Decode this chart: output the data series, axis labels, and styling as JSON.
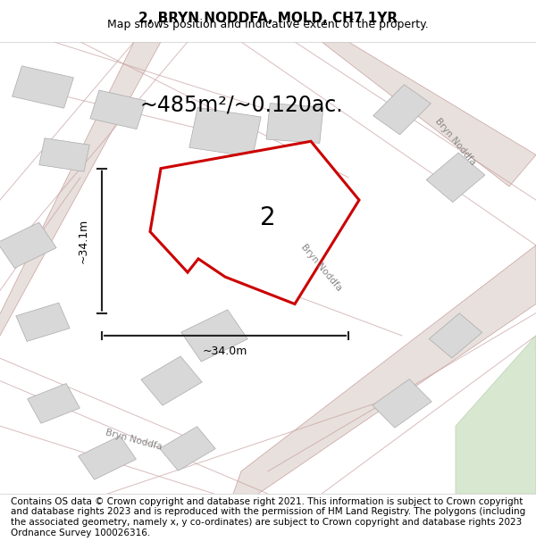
{
  "title": "2, BRYN NODDFA, MOLD, CH7 1YR",
  "subtitle": "Map shows position and indicative extent of the property.",
  "footer": "Contains OS data © Crown copyright and database right 2021. This information is subject to Crown copyright and database rights 2023 and is reproduced with the permission of HM Land Registry. The polygons (including the associated geometry, namely x, y co-ordinates) are subject to Crown copyright and database rights 2023 Ordnance Survey 100026316.",
  "area_label": "~485m²/~0.120ac.",
  "plot_number": "2",
  "dim_vertical": "~34.1m",
  "dim_horizontal": "~34.0m",
  "background_color": "#f5f0ee",
  "map_bg": "#f5f0ee",
  "plot_fill": "white",
  "plot_outline": "#cc0000",
  "road_color": "#d4b8b8",
  "building_color": "#d8d8d8",
  "road_line_color": "#c8a0a0",
  "street_label_color": "#888888",
  "dim_line_color": "#222222",
  "title_fontsize": 11,
  "subtitle_fontsize": 9,
  "footer_fontsize": 7.5,
  "area_label_fontsize": 17,
  "plot_number_fontsize": 20
}
